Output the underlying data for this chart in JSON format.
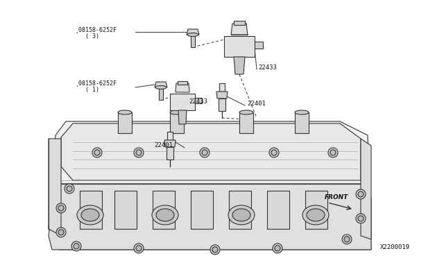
{
  "bg_color": "#ffffff",
  "part_number": "X2200019",
  "front_label": "FRONT",
  "bolt_top_label": "¸08158-6252F\n   ( 3)",
  "bolt_mid_label": "¸08158-6252F\n   ( 1)",
  "label_22433_top": "22433",
  "label_22433_mid": "22433",
  "label_22401_mid": "22401",
  "label_22401_bot": "22401",
  "line_color": "#333333",
  "light_gray": "#c8c8c8",
  "mid_gray": "#aaaaaa",
  "dark_gray": "#666666",
  "text_color": "#111111"
}
